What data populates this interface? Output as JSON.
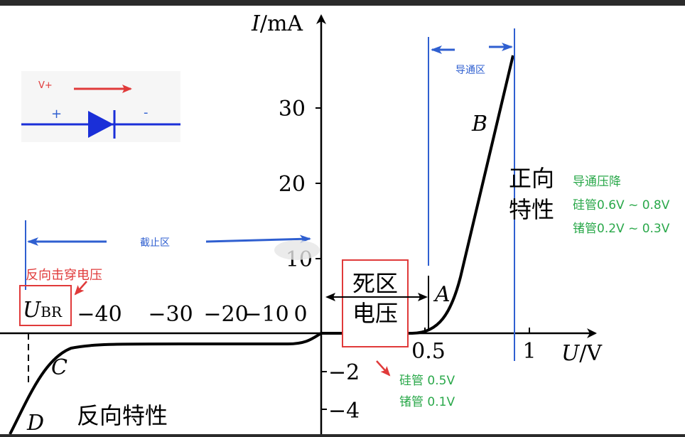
{
  "axes": {
    "y_label_italic": "I",
    "y_label_unit": "/mA",
    "x_label_italic": "U",
    "x_label_unit": "/V",
    "origin_label": "0",
    "y_ticks": [
      "30",
      "20",
      "10",
      "−2",
      "−4"
    ],
    "x_ticks_negative": [
      "−40",
      "−30",
      "−20",
      "−10"
    ],
    "x_ticks_positive": [
      "0.5",
      "1"
    ]
  },
  "curve_points": {
    "A": "A",
    "B": "B",
    "C": "C",
    "D": "D"
  },
  "inset": {
    "voltage_label": "V+",
    "plus": "+",
    "minus": "-"
  },
  "regions": {
    "conduction": "导通区",
    "cutoff": "截止区",
    "forward_line1": "正向",
    "forward_line2": "特性",
    "reverse": "反向特性",
    "dead_zone_line1": "死区",
    "dead_zone_line2": "电压"
  },
  "annotations": {
    "breakdown_label": "反向击穿电压",
    "ubr_italic": "U",
    "ubr_sub": "BR",
    "forward_drop_title": "导通压降",
    "forward_drop_si": "硅管0.6V ~ 0.8V",
    "forward_drop_ge": "锗管0.2V ~ 0.3V",
    "dead_si": "硅管 0.5V",
    "dead_ge": "锗管 0.1V"
  },
  "colors": {
    "blue": "#2f5fd0",
    "red": "#e03a3a",
    "green": "#2aa84a",
    "diode": "#1a2fd8",
    "curve": "#000000"
  }
}
